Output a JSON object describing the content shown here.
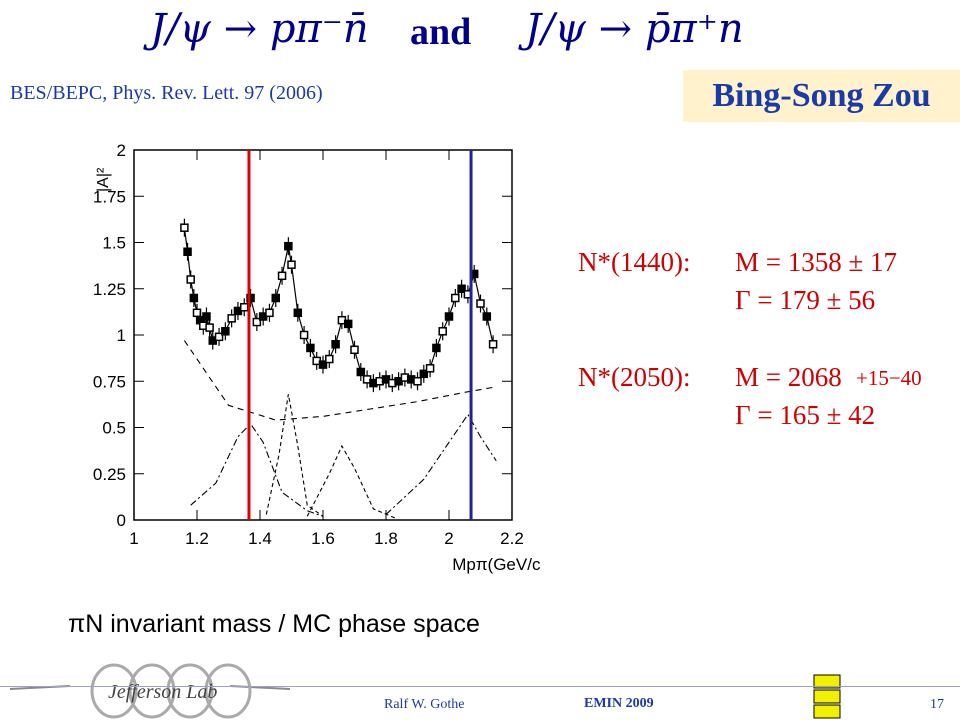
{
  "title": {
    "left_equation": "J/ψ → pπ⁻n̄",
    "connector": "and",
    "right_equation": "J/ψ → p̄π⁺n"
  },
  "reference": "BES/BEPC, Phys. Rev. Lett. 97 (2006)",
  "author_badge": "Bing-Song Zou",
  "results": {
    "n1440_label": "N*(1440):",
    "n1440_mass": "M = 1358 ± 17",
    "n1440_width": "Γ =  179 ± 56",
    "n2050_label": "N*(2050):",
    "n2050_mass": "M = 2068",
    "n2050_mass_err": "+15−40",
    "n2050_width": "Γ =  165 ± 42"
  },
  "caption": "πN invariant mass / MC phase space",
  "footer": {
    "author": "Ralf  W. Gothe",
    "conference": "EMIN 2009",
    "page": "17",
    "lab_logo_text": "Jefferson Lab"
  },
  "colors": {
    "title": "#00008b",
    "results": "#d00000",
    "marker_red": "#e00000",
    "marker_blue": "#2020a0",
    "author_badge_bg": "#fff2cc"
  },
  "chart_data": {
    "type": "scatter",
    "ylabel": "|A|²",
    "xlabel": "Mpπ(GeV/c²)",
    "xlim": [
      1.0,
      2.2
    ],
    "ylim": [
      0,
      2
    ],
    "x_ticks": [
      "1",
      "1.2",
      "1.4",
      "1.6",
      "1.8",
      "2",
      "2.2"
    ],
    "y_ticks": [
      "0",
      "0.25",
      "0.5",
      "0.75",
      "1",
      "1.25",
      "1.5",
      "1.75",
      "2"
    ],
    "markers": [
      {
        "x": 1.365,
        "color": "red"
      },
      {
        "x": 2.07,
        "color": "blue"
      }
    ],
    "series": [
      {
        "style": "data-points",
        "x": [
          1.16,
          1.17,
          1.18,
          1.19,
          1.2,
          1.21,
          1.22,
          1.23,
          1.24,
          1.25,
          1.27,
          1.29,
          1.31,
          1.33,
          1.35,
          1.37,
          1.39,
          1.41,
          1.43,
          1.45,
          1.47,
          1.49,
          1.5,
          1.52,
          1.54,
          1.56,
          1.58,
          1.6,
          1.62,
          1.64,
          1.66,
          1.68,
          1.7,
          1.72,
          1.74,
          1.76,
          1.78,
          1.8,
          1.82,
          1.84,
          1.86,
          1.88,
          1.9,
          1.92,
          1.94,
          1.96,
          1.98,
          2.0,
          2.02,
          2.04,
          2.06,
          2.08,
          2.1,
          2.12,
          2.14
        ],
        "y": [
          1.58,
          1.45,
          1.3,
          1.2,
          1.12,
          1.08,
          1.05,
          1.1,
          1.04,
          0.97,
          0.99,
          1.02,
          1.09,
          1.13,
          1.15,
          1.2,
          1.07,
          1.1,
          1.12,
          1.2,
          1.32,
          1.48,
          1.38,
          1.12,
          1.0,
          0.93,
          0.86,
          0.84,
          0.87,
          0.95,
          1.08,
          1.06,
          0.92,
          0.8,
          0.76,
          0.74,
          0.75,
          0.76,
          0.74,
          0.75,
          0.77,
          0.76,
          0.75,
          0.79,
          0.82,
          0.93,
          1.02,
          1.1,
          1.2,
          1.25,
          1.22,
          1.33,
          1.17,
          1.1,
          0.95
        ]
      },
      {
        "style": "phase-space",
        "x": [
          1.16,
          1.3,
          1.45,
          1.6,
          1.75,
          1.9,
          2.05,
          2.15
        ],
        "y": [
          0.97,
          0.62,
          0.54,
          0.56,
          0.6,
          0.64,
          0.69,
          0.72
        ]
      },
      {
        "style": "component-1",
        "x": [
          1.18,
          1.26,
          1.33,
          1.37,
          1.41,
          1.47,
          1.55,
          1.6
        ],
        "y": [
          0.08,
          0.2,
          0.45,
          0.52,
          0.42,
          0.15,
          0.05,
          0.02
        ]
      },
      {
        "style": "component-2",
        "x": [
          1.42,
          1.46,
          1.49,
          1.52,
          1.55,
          1.6
        ],
        "y": [
          0.03,
          0.35,
          0.68,
          0.4,
          0.08,
          0.02
        ]
      },
      {
        "style": "component-3",
        "x": [
          1.55,
          1.62,
          1.66,
          1.7,
          1.76,
          1.83
        ],
        "y": [
          0.02,
          0.25,
          0.4,
          0.28,
          0.06,
          0.01
        ]
      },
      {
        "style": "component-4",
        "x": [
          1.8,
          1.92,
          2.0,
          2.06,
          2.1,
          2.15
        ],
        "y": [
          0.03,
          0.22,
          0.42,
          0.57,
          0.45,
          0.32
        ]
      }
    ]
  }
}
